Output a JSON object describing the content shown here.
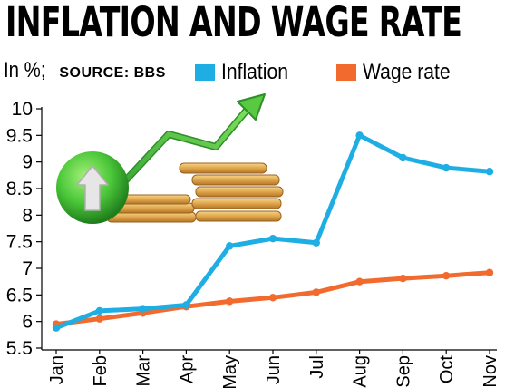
{
  "header": {
    "title": "INFLATION AND WAGE RATE",
    "unit_label": "In  %;",
    "source_label": "SOURCE: BBS"
  },
  "chart_data": {
    "type": "line",
    "title": "INFLATION AND WAGE RATE",
    "xlabel": "",
    "ylabel": "In %",
    "categories": [
      "Jan",
      "Feb",
      "Mar",
      "Apr",
      "May",
      "Jun",
      "Jul",
      "Aug",
      "Sep",
      "Oct",
      "Nov"
    ],
    "y_ticks": [
      "5.5",
      "6",
      "6.5",
      "7",
      "7.5",
      "8",
      "8.5",
      "9",
      "9.5",
      "10"
    ],
    "ylim": [
      5.5,
      10
    ],
    "grid": false,
    "legend_position": "top",
    "series": [
      {
        "name": "Inflation",
        "color": "#1eaee3",
        "values": [
          5.88,
          6.2,
          6.24,
          6.31,
          7.42,
          7.56,
          7.48,
          9.5,
          9.08,
          8.89,
          8.82
        ]
      },
      {
        "name": "Wage rate",
        "color": "#f26a2e",
        "values": [
          5.95,
          6.05,
          6.16,
          6.28,
          6.38,
          6.45,
          6.55,
          6.75,
          6.81,
          6.86,
          6.92
        ]
      }
    ]
  },
  "illustration": {
    "arrow_icon": "up-arrow-icon",
    "coins_icon": "coin-stack-icon",
    "trend_icon": "trend-arrow-icon"
  }
}
